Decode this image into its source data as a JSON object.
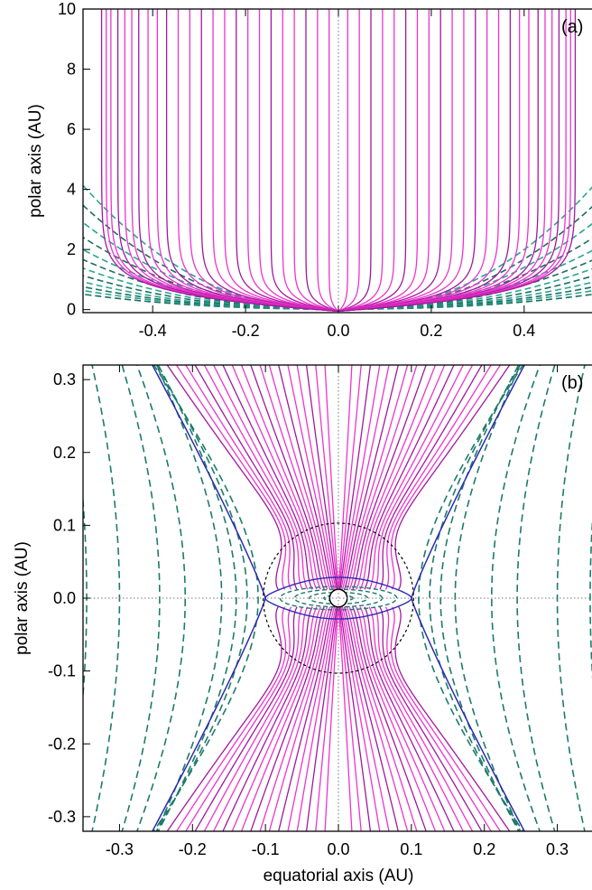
{
  "chart_data": [
    {
      "panel_label": "(a)",
      "type": "line",
      "description_of_lines": "field lines",
      "xlim": [
        -0.55,
        0.55
      ],
      "ylim": [
        -0.1,
        10
      ],
      "xticks": [
        -0.4,
        -0.2,
        0.0,
        0.2,
        0.4
      ],
      "xtick_labels": [
        "-0.4",
        "-0.2",
        "0.0",
        "0.2",
        "0.4"
      ],
      "yticks": [
        0,
        2,
        4,
        6,
        8,
        10
      ],
      "ytick_labels": [
        "0",
        "2",
        "4",
        "6",
        "8",
        "10"
      ],
      "xlabel": "",
      "ylabel": "polar axis (AU)",
      "open_line_asymptotes_x": [
        0.02,
        0.045,
        0.07,
        0.095,
        0.12,
        0.145,
        0.17,
        0.195,
        0.22,
        0.245,
        0.27,
        0.295,
        0.32,
        0.345,
        0.37,
        0.39,
        0.41,
        0.43,
        0.445,
        0.46,
        0.475,
        0.49,
        0.5,
        0.51
      ],
      "dashed_line_offsets_x": [
        0.6,
        0.75,
        0.9,
        1.1,
        1.35,
        1.65,
        2.0,
        2.4,
        2.9,
        3.5,
        4.2,
        5.0
      ],
      "colors": {
        "open": "#ee33cc",
        "open_dark": "#a0189e",
        "closed_dashed": "#2aa596",
        "closed_dashed_dark": "#1d6f5f",
        "axis_dotted": "#666666"
      }
    },
    {
      "panel_label": "(b)",
      "type": "line",
      "xlim": [
        -0.35,
        0.35
      ],
      "ylim": [
        -0.32,
        0.32
      ],
      "xticks": [
        -0.3,
        -0.2,
        -0.1,
        0.0,
        0.1,
        0.2,
        0.3
      ],
      "xtick_labels": [
        "-0.3",
        "-0.2",
        "-0.1",
        "0.0",
        "0.1",
        "0.2",
        "0.3"
      ],
      "yticks": [
        -0.3,
        -0.2,
        -0.1,
        0.0,
        0.1,
        0.2,
        0.3
      ],
      "ytick_labels": [
        "-0.3",
        "-0.2",
        "-0.1",
        "0.0",
        "0.1",
        "0.2",
        "0.3"
      ],
      "xlabel": "equatorial axis (AU)",
      "ylabel": "polar axis (AU)",
      "x_point": 0.1,
      "dashed_circle_radius": 0.103,
      "star_radius": 0.012,
      "separatrix_x_at_edge": 0.255,
      "dashed_hyperbola_vertices_x": [
        0.11,
        0.125,
        0.14,
        0.16,
        0.21,
        0.245,
        0.3,
        0.345
      ],
      "colors": {
        "open": "#ee33cc",
        "open_dark": "#a0189e",
        "separatrix": "#2b2bb0",
        "closed_dashed": "#1d7a6a",
        "circle": "#000000"
      }
    }
  ]
}
